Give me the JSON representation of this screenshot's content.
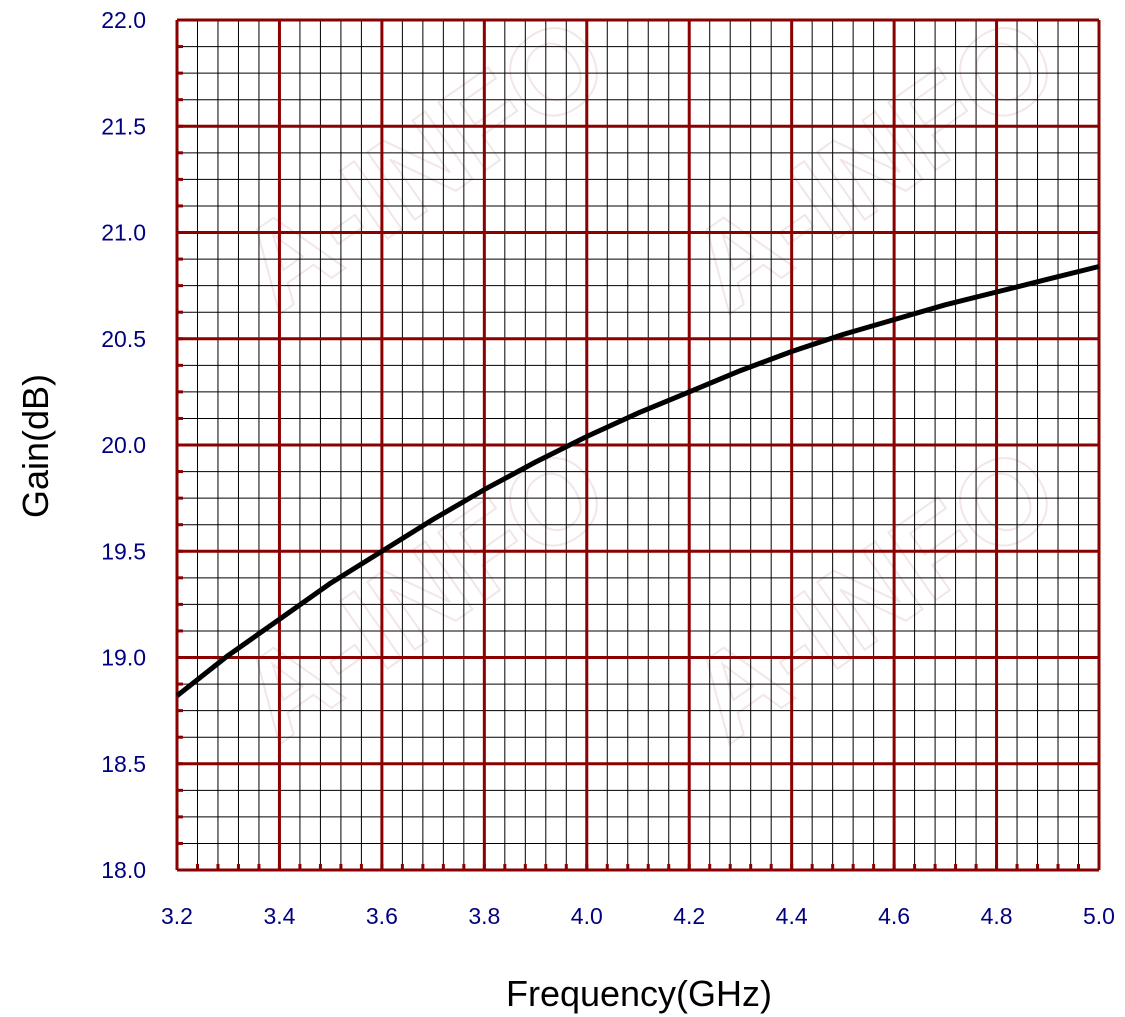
{
  "chart_data": {
    "type": "line",
    "xlabel": "Frequency(GHz)",
    "ylabel": "Gain(dB)",
    "xlim": [
      3.2,
      5.0
    ],
    "ylim": [
      18.0,
      22.0
    ],
    "xticks": [
      "3.2",
      "3.4",
      "3.6",
      "3.8",
      "4.0",
      "4.2",
      "4.4",
      "4.6",
      "4.8",
      "5.0"
    ],
    "yticks": [
      "18.0",
      "18.5",
      "19.0",
      "19.5",
      "20.0",
      "20.5",
      "21.0",
      "21.5",
      "22.0"
    ],
    "grid": true,
    "series": [
      {
        "x": [
          3.2,
          3.3,
          3.4,
          3.5,
          3.6,
          3.7,
          3.8,
          3.9,
          4.0,
          4.1,
          4.2,
          4.3,
          4.4,
          4.5,
          4.6,
          4.7,
          4.8,
          4.9,
          5.0
        ],
        "values": [
          18.82,
          19.01,
          19.18,
          19.35,
          19.5,
          19.65,
          19.79,
          19.92,
          20.04,
          20.15,
          20.25,
          20.35,
          20.44,
          20.52,
          20.59,
          20.66,
          20.72,
          20.78,
          20.84
        ],
        "color": "#000000"
      }
    ]
  },
  "watermark": {
    "text": "A-INFO",
    "color": "#f2e6e6"
  },
  "colors": {
    "major_grid": "#8b0000",
    "minor_grid": "#000000",
    "tick_label": "#000080",
    "line": "#000000"
  }
}
